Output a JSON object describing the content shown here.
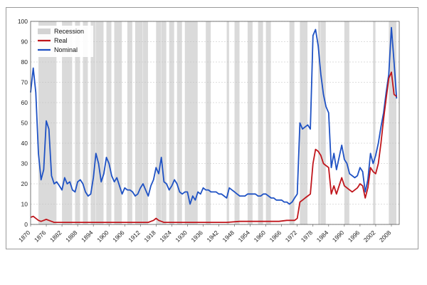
{
  "chart_data": {
    "type": "line",
    "title": "",
    "xlabel": "",
    "ylabel": "",
    "xlim": [
      1870,
      2011
    ],
    "ylim": [
      0,
      100
    ],
    "y_ticks": [
      0,
      10,
      20,
      30,
      40,
      50,
      60,
      70,
      80,
      90,
      100
    ],
    "x_ticks": [
      1870,
      1876,
      1882,
      1888,
      1894,
      1900,
      1906,
      1912,
      1918,
      1924,
      1930,
      1936,
      1942,
      1948,
      1954,
      1960,
      1966,
      1972,
      1978,
      1984,
      1990,
      1996,
      2002,
      2008
    ],
    "grid": "horizontal",
    "legend": {
      "placement": "top-left",
      "entries": [
        {
          "label": "Recession",
          "color": "#d3d3d3"
        },
        {
          "label": "Real",
          "color": "#c0161c"
        },
        {
          "label": "Nominal",
          "color": "#1f52c4"
        }
      ]
    },
    "recessions": [
      [
        1873,
        1879
      ],
      [
        1882,
        1885
      ],
      [
        1887,
        1888
      ],
      [
        1890,
        1891
      ],
      [
        1893,
        1894
      ],
      [
        1895,
        1897
      ],
      [
        1899,
        1900
      ],
      [
        1902,
        1904
      ],
      [
        1907,
        1908
      ],
      [
        1910,
        1912
      ],
      [
        1913,
        1914
      ],
      [
        1918,
        1919
      ],
      [
        1920,
        1921
      ],
      [
        1923,
        1924
      ],
      [
        1926,
        1927
      ],
      [
        1929,
        1933
      ],
      [
        1937,
        1938
      ],
      [
        1945,
        1945
      ],
      [
        1948,
        1949
      ],
      [
        1953,
        1954
      ],
      [
        1957,
        1958
      ],
      [
        1960,
        1961
      ],
      [
        1969,
        1970
      ],
      [
        1973,
        1975
      ],
      [
        1980,
        1980
      ],
      [
        1981,
        1982
      ],
      [
        1990,
        1991
      ],
      [
        2001,
        2001
      ],
      [
        2007,
        2009
      ]
    ],
    "series": [
      {
        "name": "Nominal",
        "color": "#1f52c4",
        "x": [
          1870,
          1871,
          1872,
          1873,
          1874,
          1875,
          1876,
          1877,
          1878,
          1879,
          1880,
          1881,
          1882,
          1883,
          1884,
          1885,
          1886,
          1887,
          1888,
          1889,
          1890,
          1891,
          1892,
          1893,
          1894,
          1895,
          1896,
          1897,
          1898,
          1899,
          1900,
          1901,
          1902,
          1903,
          1904,
          1905,
          1906,
          1907,
          1908,
          1909,
          1910,
          1911,
          1912,
          1913,
          1914,
          1915,
          1916,
          1917,
          1918,
          1919,
          1920,
          1921,
          1922,
          1923,
          1924,
          1925,
          1926,
          1927,
          1928,
          1929,
          1930,
          1931,
          1932,
          1933,
          1934,
          1935,
          1936,
          1937,
          1938,
          1939,
          1940,
          1941,
          1942,
          1943,
          1944,
          1945,
          1946,
          1947,
          1948,
          1949,
          1950,
          1951,
          1952,
          1953,
          1954,
          1955,
          1956,
          1957,
          1958,
          1959,
          1960,
          1961,
          1962,
          1963,
          1964,
          1965,
          1966,
          1967,
          1968,
          1969,
          1970,
          1971,
          1972,
          1973,
          1974,
          1975,
          1976,
          1977,
          1978,
          1979,
          1980,
          1981,
          1982,
          1983,
          1984,
          1985,
          1986,
          1987,
          1988,
          1989,
          1990,
          1991,
          1992,
          1993,
          1994,
          1995,
          1996,
          1997,
          1998,
          1999,
          2000,
          2001,
          2002,
          2003,
          2004,
          2005,
          2006,
          2007,
          2008,
          2009,
          2010
        ],
        "values": [
          65,
          77,
          65,
          35,
          22,
          27,
          51,
          47,
          24,
          20,
          21,
          19,
          17,
          23,
          20,
          21,
          17,
          16,
          21,
          22,
          20,
          16,
          14,
          15,
          23,
          35,
          30,
          21,
          25,
          33,
          30,
          24,
          21,
          23,
          19,
          15,
          18,
          17,
          17,
          16,
          14,
          15,
          18,
          20,
          17,
          14,
          19,
          22,
          28,
          25,
          33,
          21,
          20,
          17,
          19,
          22,
          20,
          16,
          15,
          16,
          16,
          10,
          14,
          12,
          16,
          15,
          18,
          17,
          17,
          16,
          16,
          16,
          15,
          15,
          14,
          13,
          18,
          17,
          16,
          15,
          14,
          14,
          14,
          15,
          15,
          15,
          15,
          14,
          14,
          15,
          15,
          14,
          13,
          13,
          12,
          12,
          12,
          11,
          11,
          10,
          11,
          13,
          15,
          50,
          47,
          48,
          49,
          47,
          93,
          96,
          88,
          74,
          64,
          58,
          55,
          28,
          35,
          27,
          33,
          39,
          32,
          30,
          25,
          24,
          23,
          24,
          28,
          26,
          16,
          22,
          35,
          30,
          34,
          40,
          48,
          55,
          65,
          74,
          97,
          80,
          62
        ]
      },
      {
        "name": "Real",
        "color": "#c0161c",
        "x": [
          1870,
          1871,
          1872,
          1873,
          1874,
          1875,
          1876,
          1877,
          1878,
          1879,
          1880,
          1885,
          1890,
          1895,
          1900,
          1905,
          1910,
          1915,
          1916,
          1917,
          1918,
          1919,
          1920,
          1921,
          1925,
          1930,
          1935,
          1940,
          1945,
          1950,
          1955,
          1960,
          1965,
          1968,
          1970,
          1971,
          1972,
          1973,
          1974,
          1975,
          1976,
          1977,
          1978,
          1979,
          1980,
          1981,
          1982,
          1983,
          1984,
          1985,
          1986,
          1987,
          1988,
          1989,
          1990,
          1991,
          1992,
          1993,
          1994,
          1995,
          1996,
          1997,
          1998,
          1999,
          2000,
          2001,
          2002,
          2003,
          2004,
          2005,
          2006,
          2007,
          2008,
          2009,
          2010
        ],
        "values": [
          3.5,
          4,
          3,
          2,
          1.5,
          2,
          2.5,
          2,
          1.5,
          1,
          1,
          1,
          1,
          1,
          1,
          1,
          1,
          1,
          1.5,
          2,
          3,
          2,
          1.5,
          1,
          1,
          1,
          1,
          1,
          1,
          1.5,
          1.5,
          1.5,
          1.5,
          2,
          2,
          2,
          3,
          11,
          12,
          13,
          14,
          15,
          30,
          37,
          36,
          34,
          30,
          29,
          28,
          15,
          19,
          15,
          19,
          23,
          19,
          18,
          17,
          16,
          17,
          18,
          20,
          19,
          13,
          18,
          28,
          26,
          25,
          30,
          40,
          52,
          62,
          72,
          75,
          64,
          63
        ]
      }
    ]
  }
}
